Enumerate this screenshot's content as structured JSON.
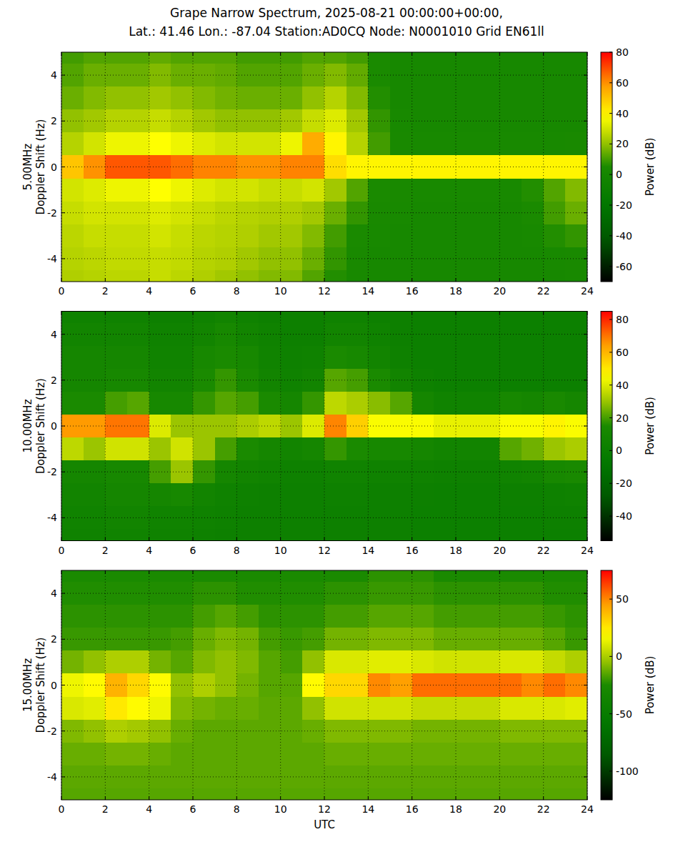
{
  "title": [
    "Grape Narrow Spectrum, 2025-08-21 00:00:00+00:00,",
    "Lat.: 41.46 Lon.: -87.04 Station:AD0CQ Node: N0001010 Grid EN61ll"
  ],
  "chart_data": [
    {
      "type": "heatmap",
      "ylabel": [
        "5.00MHz",
        "Doppler Shift (Hz)"
      ],
      "xlim": [
        0,
        24
      ],
      "xticks": [
        0,
        2,
        4,
        6,
        8,
        10,
        12,
        14,
        16,
        18,
        20,
        22,
        24
      ],
      "ylim": [
        -5,
        5
      ],
      "yticks": [
        -4,
        -2,
        0,
        2,
        4
      ],
      "grid": true,
      "x": [
        0.5,
        1.5,
        2.5,
        3.5,
        4.5,
        5.5,
        6.5,
        7.5,
        8.5,
        9.5,
        10.5,
        11.5,
        12.5,
        13.5,
        14.5,
        15.5,
        16.5,
        17.5,
        18.5,
        19.5,
        20.5,
        21.5,
        22.5,
        23.5
      ],
      "y": [
        5,
        4,
        3,
        2,
        1,
        0,
        -1,
        -2,
        -3,
        -4,
        -5
      ],
      "cells": [
        [
          10,
          12,
          12,
          12,
          14,
          12,
          12,
          12,
          10,
          10,
          10,
          12,
          12,
          10,
          5,
          2,
          2,
          2,
          2,
          2,
          2,
          2,
          2,
          2
        ],
        [
          12,
          15,
          15,
          15,
          18,
          15,
          15,
          14,
          12,
          12,
          12,
          15,
          18,
          14,
          5,
          2,
          2,
          2,
          2,
          2,
          2,
          2,
          2,
          2
        ],
        [
          15,
          18,
          20,
          20,
          22,
          20,
          18,
          16,
          15,
          15,
          15,
          20,
          25,
          18,
          6,
          2,
          2,
          2,
          2,
          2,
          2,
          2,
          2,
          2
        ],
        [
          20,
          22,
          25,
          25,
          28,
          25,
          22,
          20,
          20,
          20,
          22,
          28,
          32,
          22,
          8,
          3,
          2,
          2,
          2,
          2,
          2,
          2,
          2,
          2
        ],
        [
          25,
          30,
          35,
          35,
          38,
          35,
          32,
          30,
          30,
          30,
          35,
          55,
          40,
          25,
          10,
          4,
          3,
          3,
          3,
          3,
          3,
          3,
          3,
          4
        ],
        [
          50,
          60,
          68,
          68,
          68,
          65,
          62,
          62,
          60,
          60,
          62,
          62,
          45,
          40,
          40,
          40,
          40,
          40,
          40,
          40,
          40,
          40,
          40,
          40
        ],
        [
          30,
          32,
          35,
          35,
          38,
          35,
          32,
          30,
          30,
          28,
          28,
          30,
          22,
          12,
          5,
          4,
          3,
          3,
          3,
          3,
          3,
          6,
          12,
          18
        ],
        [
          28,
          30,
          30,
          30,
          32,
          30,
          28,
          26,
          25,
          24,
          24,
          22,
          15,
          8,
          4,
          3,
          2,
          2,
          2,
          2,
          2,
          5,
          10,
          15
        ],
        [
          26,
          28,
          28,
          28,
          30,
          28,
          26,
          25,
          24,
          22,
          22,
          18,
          10,
          5,
          3,
          2,
          2,
          2,
          2,
          2,
          2,
          3,
          6,
          8
        ],
        [
          25,
          26,
          27,
          27,
          28,
          27,
          25,
          24,
          22,
          20,
          20,
          15,
          8,
          4,
          2,
          2,
          2,
          2,
          2,
          2,
          2,
          2,
          3,
          4
        ],
        [
          24,
          25,
          26,
          26,
          28,
          26,
          24,
          22,
          20,
          18,
          18,
          12,
          6,
          3,
          2,
          2,
          2,
          2,
          2,
          2,
          2,
          2,
          2,
          3
        ]
      ],
      "colorbar": {
        "label": "Power (dB)",
        "lim": [
          -70,
          80
        ],
        "ticks": [
          -60,
          -40,
          -20,
          0,
          20,
          40,
          60,
          80
        ]
      }
    },
    {
      "type": "heatmap",
      "ylabel": [
        "10.00MHz",
        "Doppler Shift (Hz)"
      ],
      "xlim": [
        0,
        24
      ],
      "xticks": [
        0,
        2,
        4,
        6,
        8,
        10,
        12,
        14,
        16,
        18,
        20,
        22,
        24
      ],
      "ylim": [
        -5,
        5
      ],
      "yticks": [
        -4,
        -2,
        0,
        2,
        4
      ],
      "grid": true,
      "x": [
        0.5,
        1.5,
        2.5,
        3.5,
        4.5,
        5.5,
        6.5,
        7.5,
        8.5,
        9.5,
        10.5,
        11.5,
        12.5,
        13.5,
        14.5,
        15.5,
        16.5,
        17.5,
        18.5,
        19.5,
        20.5,
        21.5,
        22.5,
        23.5
      ],
      "y": [
        5,
        4,
        3,
        2,
        1,
        0,
        -1,
        -2,
        -3,
        -4,
        -5
      ],
      "cells": [
        [
          5,
          5,
          5,
          5,
          3,
          3,
          5,
          8,
          5,
          3,
          3,
          3,
          5,
          5,
          3,
          3,
          2,
          2,
          2,
          2,
          2,
          2,
          2,
          2
        ],
        [
          8,
          8,
          8,
          8,
          5,
          5,
          8,
          12,
          8,
          5,
          3,
          3,
          8,
          8,
          5,
          3,
          2,
          2,
          2,
          2,
          2,
          2,
          2,
          2
        ],
        [
          10,
          10,
          10,
          10,
          6,
          6,
          12,
          15,
          12,
          6,
          4,
          5,
          15,
          12,
          8,
          4,
          2,
          2,
          2,
          2,
          2,
          2,
          2,
          2
        ],
        [
          10,
          10,
          12,
          12,
          8,
          8,
          15,
          18,
          15,
          8,
          5,
          8,
          22,
          20,
          15,
          8,
          4,
          2,
          2,
          2,
          2,
          2,
          2,
          2
        ],
        [
          15,
          15,
          20,
          22,
          12,
          12,
          18,
          22,
          20,
          15,
          10,
          18,
          35,
          32,
          28,
          22,
          10,
          6,
          6,
          6,
          12,
          10,
          14,
          10
        ],
        [
          65,
          65,
          70,
          70,
          40,
          30,
          30,
          30,
          32,
          35,
          30,
          40,
          68,
          55,
          45,
          45,
          45,
          42,
          42,
          42,
          45,
          45,
          48,
          45
        ],
        [
          35,
          30,
          38,
          38,
          30,
          38,
          30,
          20,
          15,
          10,
          8,
          10,
          18,
          15,
          12,
          12,
          10,
          8,
          8,
          8,
          22,
          25,
          30,
          32
        ],
        [
          10,
          10,
          12,
          12,
          20,
          30,
          18,
          10,
          8,
          6,
          4,
          4,
          6,
          6,
          5,
          5,
          5,
          4,
          4,
          4,
          6,
          8,
          12,
          14
        ],
        [
          8,
          8,
          10,
          10,
          10,
          12,
          8,
          5,
          4,
          3,
          3,
          3,
          4,
          4,
          3,
          3,
          3,
          2,
          2,
          2,
          3,
          3,
          4,
          5
        ],
        [
          6,
          6,
          8,
          8,
          6,
          6,
          5,
          4,
          3,
          3,
          3,
          3,
          3,
          3,
          3,
          3,
          2,
          2,
          2,
          2,
          2,
          2,
          3,
          3
        ],
        [
          5,
          5,
          6,
          6,
          5,
          5,
          4,
          3,
          3,
          3,
          3,
          3,
          3,
          3,
          3,
          3,
          2,
          2,
          2,
          2,
          2,
          2,
          2,
          2
        ]
      ],
      "colorbar": {
        "label": "Power (dB)",
        "lim": [
          -55,
          85
        ],
        "ticks": [
          -40,
          -20,
          0,
          20,
          40,
          60,
          80
        ]
      }
    },
    {
      "type": "heatmap",
      "ylabel": [
        "15.00MHz",
        "Doppler Shift (Hz)"
      ],
      "xlabel": "UTC",
      "xlim": [
        0,
        24
      ],
      "xticks": [
        0,
        2,
        4,
        6,
        8,
        10,
        12,
        14,
        16,
        18,
        20,
        22,
        24
      ],
      "ylim": [
        -5,
        5
      ],
      "yticks": [
        -4,
        -2,
        0,
        2,
        4
      ],
      "grid": true,
      "x": [
        0.5,
        1.5,
        2.5,
        3.5,
        4.5,
        5.5,
        6.5,
        7.5,
        8.5,
        9.5,
        10.5,
        11.5,
        12.5,
        13.5,
        14.5,
        15.5,
        16.5,
        17.5,
        18.5,
        19.5,
        20.5,
        21.5,
        22.5,
        23.5
      ],
      "y": [
        5,
        4,
        3,
        2,
        1,
        0,
        -1,
        -2,
        -3,
        -4,
        -5
      ],
      "cells": [
        [
          -25,
          -25,
          -25,
          -25,
          -25,
          -25,
          -25,
          -25,
          -25,
          -25,
          -25,
          -25,
          -25,
          -25,
          -22,
          -22,
          -22,
          -25,
          -25,
          -25,
          -25,
          -25,
          -25,
          -25
        ],
        [
          -24,
          -24,
          -24,
          -24,
          -24,
          -24,
          -22,
          -22,
          -24,
          -24,
          -24,
          -24,
          -22,
          -22,
          -20,
          -20,
          -20,
          -22,
          -22,
          -22,
          -22,
          -22,
          -24,
          -24
        ],
        [
          -22,
          -22,
          -22,
          -22,
          -22,
          -22,
          -18,
          -15,
          -18,
          -22,
          -22,
          -22,
          -18,
          -18,
          -15,
          -15,
          -15,
          -18,
          -18,
          -18,
          -18,
          -18,
          -20,
          -22
        ],
        [
          -20,
          -20,
          -20,
          -20,
          -20,
          -18,
          -12,
          -8,
          -10,
          -18,
          -20,
          -18,
          -10,
          -10,
          -8,
          -8,
          -8,
          -12,
          -12,
          -12,
          -12,
          -12,
          -15,
          -20
        ],
        [
          -10,
          -5,
          0,
          0,
          -10,
          -15,
          -8,
          -5,
          -8,
          -15,
          -18,
          -5,
          10,
          10,
          12,
          12,
          10,
          8,
          8,
          8,
          10,
          10,
          5,
          0
        ],
        [
          15,
          20,
          40,
          30,
          20,
          -5,
          0,
          -5,
          -10,
          -15,
          -15,
          20,
          30,
          30,
          50,
          45,
          55,
          55,
          55,
          55,
          55,
          50,
          55,
          50
        ],
        [
          10,
          12,
          25,
          20,
          15,
          -8,
          -10,
          -12,
          -12,
          -14,
          -14,
          -5,
          8,
          8,
          8,
          8,
          5,
          5,
          5,
          5,
          10,
          10,
          10,
          12
        ],
        [
          -8,
          -5,
          0,
          -2,
          -5,
          -12,
          -14,
          -14,
          -14,
          -14,
          -14,
          -12,
          -8,
          -8,
          -8,
          -8,
          -10,
          -10,
          -10,
          -10,
          -8,
          -8,
          -8,
          -8
        ],
        [
          -12,
          -12,
          -10,
          -10,
          -12,
          -14,
          -14,
          -14,
          -14,
          -14,
          -14,
          -14,
          -12,
          -12,
          -12,
          -12,
          -12,
          -12,
          -12,
          -12,
          -12,
          -12,
          -12,
          -12
        ],
        [
          -14,
          -14,
          -14,
          -14,
          -14,
          -14,
          -14,
          -14,
          -14,
          -14,
          -14,
          -14,
          -14,
          -14,
          -14,
          -14,
          -14,
          -14,
          -14,
          -14,
          -14,
          -14,
          -14,
          -14
        ],
        [
          -15,
          -15,
          -15,
          -15,
          -15,
          -15,
          -15,
          -15,
          -15,
          -15,
          -15,
          -15,
          -15,
          -15,
          -15,
          -15,
          -15,
          -15,
          -15,
          -15,
          -15,
          -15,
          -15,
          -15
        ]
      ],
      "colorbar": {
        "label": "Power (dB)",
        "lim": [
          -125,
          75
        ],
        "ticks": [
          -100,
          -50,
          0,
          50
        ]
      }
    }
  ]
}
